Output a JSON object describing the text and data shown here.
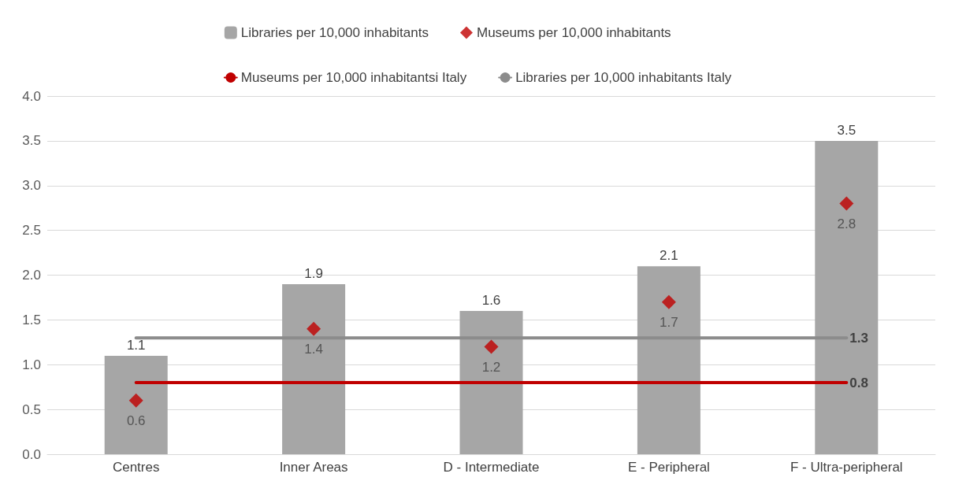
{
  "chart_data": {
    "type": "bar",
    "categories": [
      "Centres",
      "Inner Areas",
      "D - Intermediate",
      "E - Peripheral",
      "F - Ultra-peripheral"
    ],
    "series": [
      {
        "name": "Libraries per 10,000 inhabitants",
        "color": "#a6a6a6",
        "values": [
          1.1,
          1.9,
          1.6,
          2.1,
          3.5
        ],
        "data_labels": true
      },
      {
        "name": "Museums per 10,000 inhabitants",
        "type": "scatter",
        "marker": "diamond",
        "color": "#c00000",
        "values": [
          0.6,
          1.4,
          1.2,
          1.7,
          2.8
        ],
        "data_labels": true
      },
      {
        "name": "Museums per 10,000 inhabitantsi Italy",
        "type": "line",
        "marker": "none",
        "color": "#c00000",
        "values": [
          0.8,
          0.8,
          0.8,
          0.8,
          0.8
        ],
        "value_labels": [
          null,
          null,
          null,
          null,
          "0.8"
        ]
      },
      {
        "name": "Libraries per 10,000 inhabitants Italy",
        "type": "line",
        "marker": "none",
        "color": "#8c8c8c",
        "values": [
          1.3,
          1.3,
          1.3,
          1.3,
          1.3
        ],
        "value_labels": [
          null,
          null,
          null,
          null,
          "1.3"
        ]
      }
    ],
    "ylim": [
      0,
      4
    ],
    "yticks": [
      {
        "value": 0,
        "label": "0.0"
      },
      0.5,
      {
        "value": 1,
        "label": "1.0"
      },
      1.5,
      {
        "value": 2,
        "label": "2.0"
      },
      2.5,
      {
        "value": 3,
        "label": "3.0"
      },
      3.5,
      {
        "value": 4,
        "label": "4.0"
      }
    ],
    "grid": "y",
    "legend": "top"
  }
}
